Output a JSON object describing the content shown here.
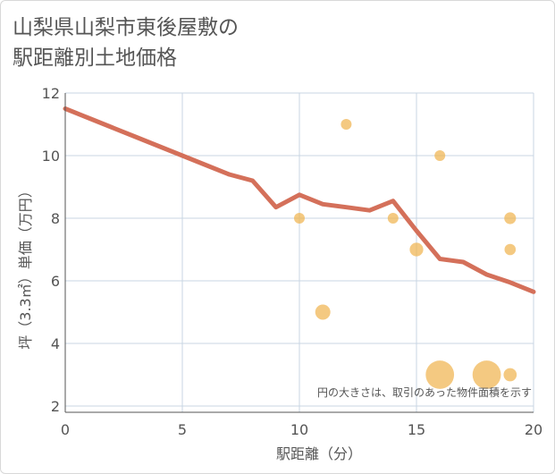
{
  "title_lines": [
    "山梨県山梨市東後屋敷の",
    "駅距離別土地価格"
  ],
  "colors": {
    "line": "#d4705a",
    "bubble": "#f0b450",
    "grid": "#c9d6e3",
    "axis": "#555555",
    "background": "#ffffff"
  },
  "chart_data": {
    "type": "scatter",
    "title": "山梨県山梨市東後屋敷の駅距離別土地価格",
    "xlabel": "駅距離（分）",
    "ylabel": "坪（3.3㎡）単価（万円）",
    "xlim": [
      0,
      20
    ],
    "ylim": [
      1.8,
      12
    ],
    "x_ticks": [
      0,
      5,
      10,
      15,
      20
    ],
    "y_ticks": [
      2,
      4,
      6,
      8,
      10,
      12
    ],
    "grid": true,
    "note": "円の大きさは、取引のあった物件面積を示す",
    "series": [
      {
        "type": "bubble",
        "points": [
          {
            "x": 10,
            "y": 8,
            "size": 1
          },
          {
            "x": 11,
            "y": 5,
            "size": 2
          },
          {
            "x": 12,
            "y": 11,
            "size": 1
          },
          {
            "x": 14,
            "y": 8,
            "size": 1
          },
          {
            "x": 15,
            "y": 7,
            "size": 1.6
          },
          {
            "x": 16,
            "y": 10,
            "size": 1
          },
          {
            "x": 16,
            "y": 3,
            "size": 7
          },
          {
            "x": 18,
            "y": 3,
            "size": 7
          },
          {
            "x": 19,
            "y": 8,
            "size": 1.2
          },
          {
            "x": 19,
            "y": 7,
            "size": 1.1
          },
          {
            "x": 19,
            "y": 3,
            "size": 1.5
          }
        ]
      },
      {
        "type": "line",
        "x": [
          0,
          1,
          2,
          3,
          4,
          5,
          6,
          7,
          8,
          9,
          10,
          11,
          12,
          13,
          14,
          15,
          16,
          17,
          18,
          19,
          20
        ],
        "y": [
          11.5,
          11.2,
          10.9,
          10.6,
          10.3,
          10.0,
          9.7,
          9.4,
          9.2,
          8.35,
          8.75,
          8.45,
          8.35,
          8.25,
          8.55,
          7.6,
          6.7,
          6.6,
          6.2,
          5.95,
          5.65
        ]
      }
    ]
  }
}
